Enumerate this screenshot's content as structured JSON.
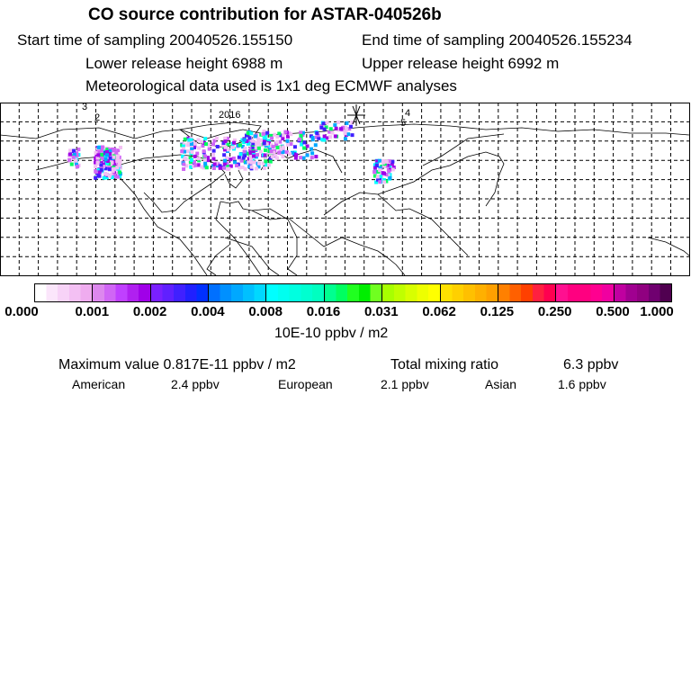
{
  "title": "CO  source contribution for ASTAR-040526b",
  "start_label": "Start time of sampling 20040526.155150",
  "end_label": "End time of sampling 20040526.155234",
  "lower_label": "Lower release height 6988 m",
  "upper_label": "Upper release height 6992 m",
  "met_label": "Meteorological data used is 1x1 deg ECMWF analyses",
  "map_markers": [
    "3",
    "2",
    "2016",
    "4",
    "5"
  ],
  "colorbar": {
    "ticks": [
      "0.000",
      "0.001",
      "0.002",
      "0.004",
      "0.008",
      "0.016",
      "0.031",
      "0.062",
      "0.125",
      "0.250",
      "0.500",
      "1.000"
    ],
    "segments": [
      [
        "#ffffff",
        "#fbe6fb",
        "#f7d3f7",
        "#f3c0f3",
        "#efacef"
      ],
      [
        "#dd88ee",
        "#d066f5",
        "#c040ff",
        "#b020f0",
        "#a000e8"
      ],
      [
        "#7a20ff",
        "#6020ff",
        "#4020ff",
        "#2020ff",
        "#0030ff"
      ],
      [
        "#0070ff",
        "#0090ff",
        "#00a8ff",
        "#00c0ff",
        "#00d8ff"
      ],
      [
        "#00ffff",
        "#00fff0",
        "#00ffe0",
        "#00ffd0",
        "#00ffc0"
      ],
      [
        "#00ff90",
        "#00ff60",
        "#20ff20",
        "#00ee00",
        "#70ff20"
      ],
      [
        "#a8ff00",
        "#c0ff00",
        "#d8ff00",
        "#eeff00",
        "#ffff00"
      ],
      [
        "#ffe000",
        "#ffd000",
        "#ffc000",
        "#ffb000",
        "#ffa000"
      ],
      [
        "#ff8000",
        "#ff6000",
        "#ff4000",
        "#ff2040",
        "#ff0050"
      ],
      [
        "#ff1090",
        "#ff0080",
        "#ff0080",
        "#ff0090",
        "#f000a0"
      ],
      [
        "#c000a0",
        "#a00090",
        "#900080",
        "#700070",
        "#500050"
      ]
    ],
    "units": "10E-10 ppbv / m2"
  },
  "max_label": "Maximum value  0.817E-11 ppbv / m2",
  "total_label": "Total mixing ratio",
  "total_value": "6.3 ppbv",
  "regions": [
    {
      "name": "American",
      "value": "2.4 ppbv"
    },
    {
      "name": "European",
      "value": "2.1 ppbv"
    },
    {
      "name": "Asian",
      "value": "1.6 ppbv"
    }
  ]
}
